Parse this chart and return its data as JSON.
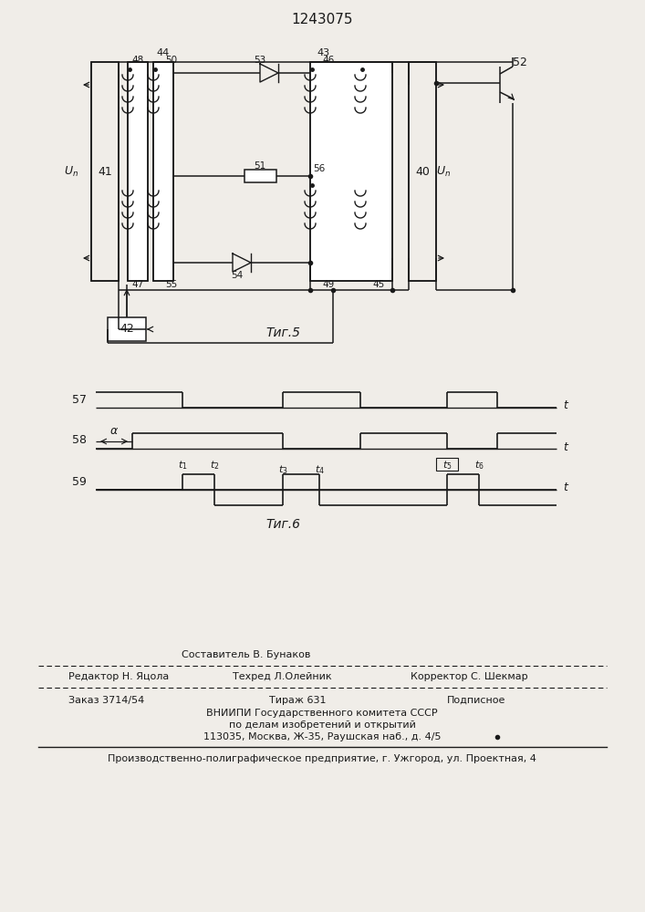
{
  "title": "1243075",
  "bg_color": "#f0ede8",
  "line_color": "#1a1a1a",
  "fig5_caption": "Τиг.5",
  "fig6_caption": "Τиг.6",
  "footer": {
    "sestavitel": "Составитель В. Бунаков",
    "redaktor": "Редактор Н. Яцола",
    "tehred": "Техред Л.Олейник",
    "korrektor": "Корректор С. Шекмар",
    "zakaz": "Заказ 3714/54",
    "tirazh": "Тираж 631",
    "podpisnoe": "Подписное",
    "vniIPI": "ВНИИПИ Государственного комитета СССР",
    "po_delam": "по делам изобретений и открытий",
    "address": "113035, Москва, Ж-35, Раушская наб., д. 4/5",
    "factory": "Производственно-полиграфическое предприятие, г. Ужгород, ул. Проектная, 4"
  }
}
